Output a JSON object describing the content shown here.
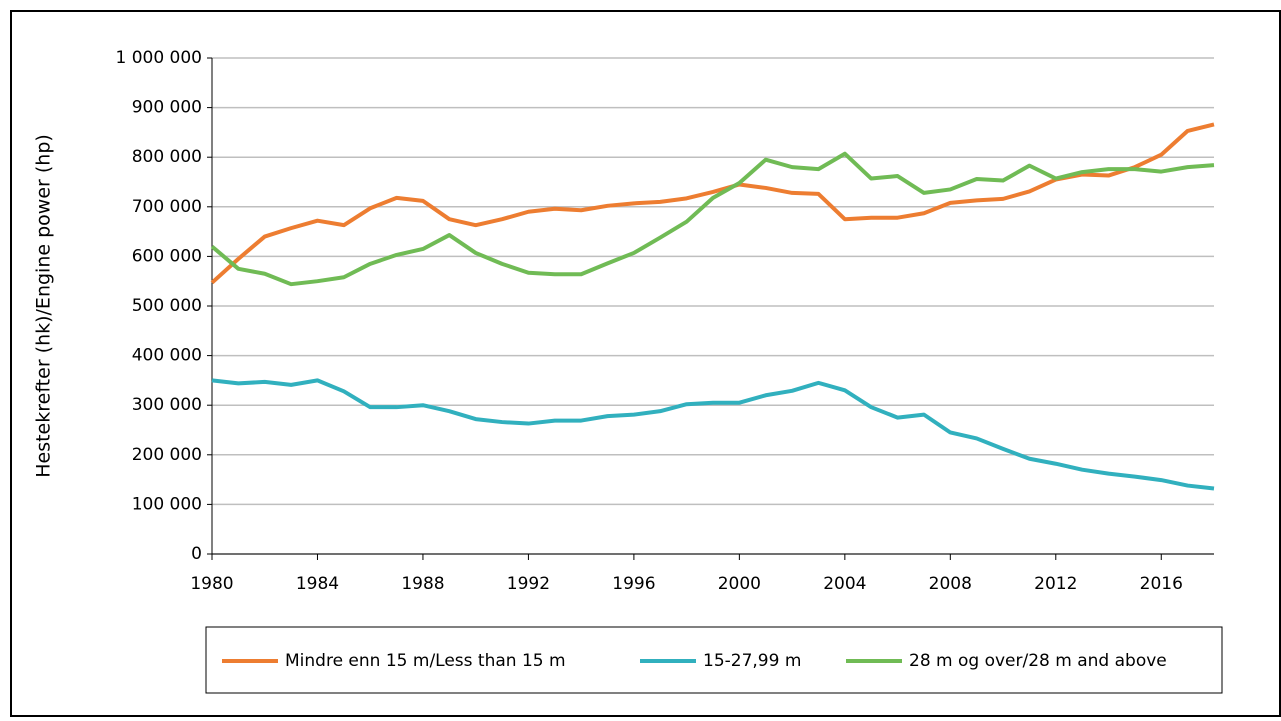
{
  "chart_data": {
    "type": "line",
    "y_label": "Hestekrefter (hk)/Engine power (hp)",
    "x": [
      1980,
      1981,
      1982,
      1983,
      1984,
      1985,
      1986,
      1987,
      1988,
      1989,
      1990,
      1991,
      1992,
      1993,
      1994,
      1995,
      1996,
      1997,
      1998,
      1999,
      2000,
      2001,
      2002,
      2003,
      2004,
      2005,
      2006,
      2007,
      2008,
      2009,
      2010,
      2011,
      2012,
      2013,
      2014,
      2015,
      2016,
      2017,
      2018
    ],
    "xlim": [
      1980,
      2018
    ],
    "xticks": [
      1980,
      1984,
      1988,
      1992,
      1996,
      2000,
      2004,
      2008,
      2012,
      2016
    ],
    "ylim": [
      0,
      1000000
    ],
    "yticks": [
      0,
      {
        "value": 100000,
        "label": "100 000"
      },
      {
        "value": 200000,
        "label": "200 000"
      },
      {
        "value": 300000,
        "label": "300 000"
      },
      {
        "value": 400000,
        "label": "400 000"
      },
      {
        "value": 500000,
        "label": "500 000"
      },
      {
        "value": 600000,
        "label": "600 000"
      },
      {
        "value": 700000,
        "label": "700 000"
      },
      {
        "value": 800000,
        "label": "800 000"
      },
      {
        "value": 900000,
        "label": "900 000"
      },
      {
        "value": 1000000,
        "label": "1 000 000"
      }
    ],
    "grid": true,
    "legend": "bottom",
    "series": [
      {
        "name": "Mindre enn 15 m/Less than 15 m",
        "color": "#ed7d31",
        "values": [
          547000,
          595000,
          640000,
          657000,
          672000,
          663000,
          697000,
          718000,
          712000,
          675000,
          663000,
          675000,
          690000,
          696000,
          693000,
          702000,
          707000,
          710000,
          717000,
          730000,
          745000,
          738000,
          728000,
          726000,
          675000,
          678000,
          678000,
          687000,
          708000,
          713000,
          716000,
          731000,
          755000,
          765000,
          763000,
          780000,
          805000,
          853000,
          866000
        ]
      },
      {
        "name": "15-27,99 m",
        "color": "#31b0be",
        "values": [
          350000,
          344000,
          347000,
          341000,
          350000,
          328000,
          296000,
          296000,
          300000,
          288000,
          272000,
          266000,
          263000,
          269000,
          269000,
          278000,
          281000,
          288000,
          302000,
          305000,
          305000,
          320000,
          329000,
          345000,
          330000,
          296000,
          275000,
          281000,
          245000,
          233000,
          212000,
          192000,
          182000,
          170000,
          162000,
          156000,
          149000,
          138000,
          132000
        ]
      },
      {
        "name": "28 m og over/28 m and above",
        "color": "#70bb55",
        "values": [
          620000,
          575000,
          565000,
          544000,
          550000,
          558000,
          585000,
          603000,
          615000,
          643000,
          607000,
          585000,
          567000,
          564000,
          564000,
          586000,
          607000,
          638000,
          670000,
          718000,
          748000,
          795000,
          780000,
          776000,
          807000,
          757000,
          762000,
          728000,
          735000,
          756000,
          753000,
          783000,
          757000,
          770000,
          776000,
          776000,
          771000,
          780000,
          784000
        ]
      }
    ]
  }
}
